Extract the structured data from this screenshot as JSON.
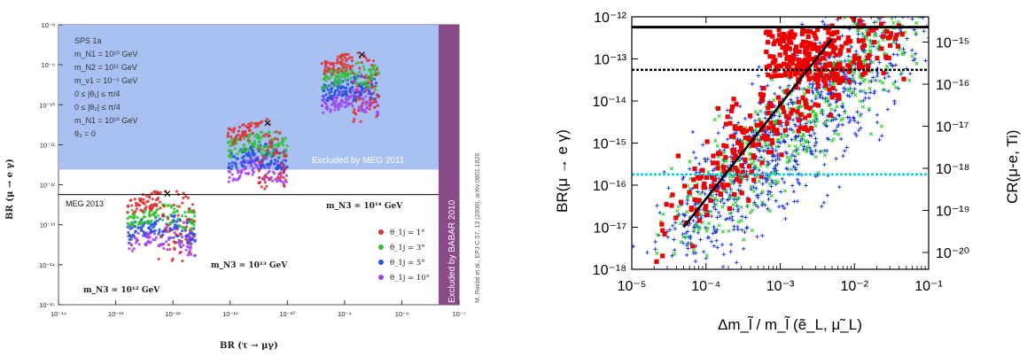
{
  "chart_data": [
    {
      "type": "scatter",
      "xlabel": "BR (τ → μγ)",
      "ylabel": "BR (μ → e γ)",
      "x_log": true,
      "y_log": true,
      "xlim": [
        1e-14,
        1e-07
      ],
      "ylim": [
        1e-15,
        1e-08
      ],
      "x_ticks": [
        "10⁻¹⁴",
        "10⁻¹³",
        "10⁻¹²",
        "10⁻¹¹",
        "10⁻¹⁰",
        "10⁻⁹",
        "10⁻⁸",
        "10⁻⁷"
      ],
      "y_ticks": [
        "10⁻⁸",
        "10⁻⁹",
        "10⁻¹⁰",
        "10⁻¹¹",
        "10⁻¹²",
        "10⁻¹³",
        "10⁻¹⁴",
        "10⁻¹⁵"
      ],
      "parameters": [
        "SPS 1a",
        "m_N1 = 10¹⁰ GeV",
        "m_N2 = 10¹¹ GeV",
        "m_ν1 = 10⁻⁵ GeV",
        "0 ≤ |θ₁| ≤ π/4",
        "0 ≤ |θ₂| ≤ π/4",
        "m_N1 = 10¹⁰ GeV",
        "θ₃ = 0"
      ],
      "excluded_region_label": "Excluded by MEG 2011",
      "excluded_region_y_from": 2.4e-12,
      "babar_label": "Excluded by BABAR 2010",
      "babar_x_from": 4.4e-08,
      "meg2013_label": "MEG 2013",
      "meg2013_y": 5.7e-13,
      "citation": "M. Raidal et al., EPJ-C 57, 13 (2008), arXiv:0801.1826",
      "cluster_labels": [
        "m_N3 = 10¹² GeV",
        "m_N3 = 10¹³ GeV",
        "m_N3 = 10¹⁴ GeV"
      ],
      "legend": [
        {
          "label": "θ_1j = 1°",
          "color": "#e03030"
        },
        {
          "label": "θ_1j = 3°",
          "color": "#30c030"
        },
        {
          "label": "θ_1j = 5°",
          "color": "#2050e0"
        },
        {
          "label": "θ_1j = 10°",
          "color": "#a040f0"
        }
      ],
      "clusters": [
        {
          "x_peak": 8e-13,
          "y_peak": 6e-13,
          "x_right": 2.5e-12
        },
        {
          "x_peak": 4.5e-11,
          "y_peak": 3.5e-11,
          "x_right": 1e-10
        },
        {
          "x_peak": 2e-09,
          "y_peak": 1.8e-09,
          "x_right": 4e-09
        }
      ]
    },
    {
      "type": "scatter",
      "xlabel": "Δm_l̃ / m_l̃ (ẽ_L, μ̃_L)",
      "ylabel": "BR(μ → e γ)",
      "y2label": "CR(μ-e, Ti)",
      "x_log": true,
      "y_log": true,
      "xlim": [
        1e-05,
        0.1
      ],
      "ylim": [
        1e-18,
        1e-12
      ],
      "x_ticks": [
        {
          "v": -5,
          "l": "10⁻⁵"
        },
        {
          "v": -4,
          "l": "10⁻⁴"
        },
        {
          "v": -3,
          "l": "10⁻³"
        },
        {
          "v": -2,
          "l": "10⁻²"
        },
        {
          "v": -1,
          "l": "10⁻¹"
        }
      ],
      "y_ticks": [
        {
          "v": -12,
          "l": "10⁻¹²"
        },
        {
          "v": -13,
          "l": "10⁻¹³"
        },
        {
          "v": -14,
          "l": "10⁻¹⁴"
        },
        {
          "v": -15,
          "l": "10⁻¹⁵"
        },
        {
          "v": -16,
          "l": "10⁻¹⁶"
        },
        {
          "v": -17,
          "l": "10⁻¹⁷"
        },
        {
          "v": -18,
          "l": "10⁻¹⁸"
        }
      ],
      "y2_ticks": [
        {
          "v": -12.6,
          "l": "10⁻¹⁵"
        },
        {
          "v": -13.6,
          "l": "10⁻¹⁶"
        },
        {
          "v": -14.6,
          "l": "10⁻¹⁷"
        },
        {
          "v": -15.6,
          "l": "10⁻¹⁸"
        },
        {
          "v": -16.6,
          "l": "10⁻¹⁹"
        },
        {
          "v": -17.6,
          "l": "10⁻²⁰"
        }
      ],
      "hlines": [
        {
          "y": 5.7e-13,
          "style": "solid",
          "color": "#000000"
        },
        {
          "y": 5.5e-14,
          "style": "dotted",
          "color": "#000000"
        },
        {
          "y": 1.8e-16,
          "style": "dotted",
          "color": "#00d0e0"
        }
      ],
      "fit_line": {
        "x": [
          5e-05,
          0.005
        ],
        "y": [
          1e-17,
          3e-13
        ]
      },
      "series": [
        {
          "marker": "plus",
          "color": "#1030e0"
        },
        {
          "marker": "x",
          "color": "#20d020"
        },
        {
          "marker": "square",
          "color": "#ee0000"
        }
      ]
    }
  ]
}
